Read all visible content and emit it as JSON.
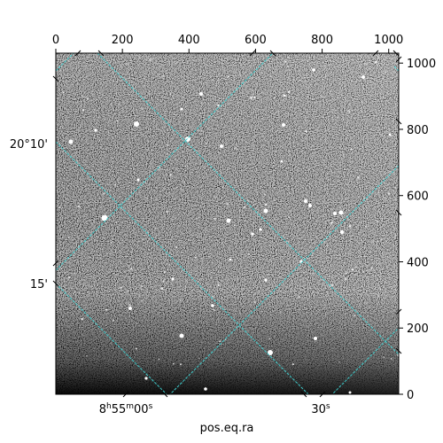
{
  "figure": {
    "xlabel": "pos.eq.ra",
    "top_axis_ticks": [
      "0",
      "200",
      "400",
      "600",
      "800",
      "1000"
    ],
    "right_axis_ticks": [
      "0",
      "200",
      "400",
      "600",
      "800",
      "1000"
    ],
    "left_axis_labels": [
      "20°10'",
      "15'"
    ],
    "bottom_axis_labels": [
      {
        "hours": "8",
        "h": "h",
        "minutes": "55",
        "m": "m",
        "seconds": "00",
        "s": "s"
      },
      {
        "seconds": "30",
        "s": "s"
      }
    ],
    "grid_color": "#3fd0d0"
  }
}
